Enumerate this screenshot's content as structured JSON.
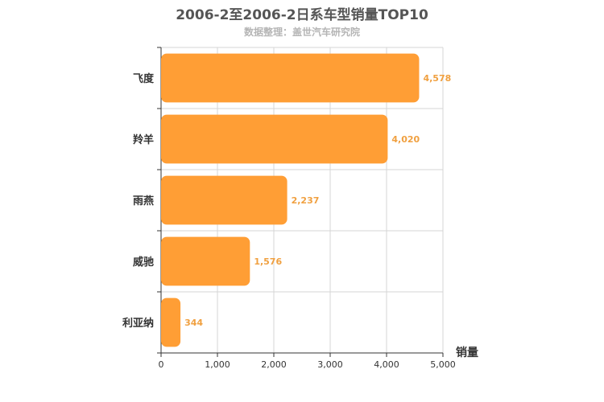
{
  "chart_data": {
    "type": "bar",
    "orientation": "horizontal",
    "title": "2006-2至2006-2日系车型销量TOP10",
    "subtitle": "数据整理：盖世汽车研究院",
    "categories": [
      "飞度",
      "羚羊",
      "雨燕",
      "威驰",
      "利亚纳"
    ],
    "values": [
      4578,
      4020,
      2237,
      1576,
      344
    ],
    "value_labels": [
      "4,578",
      "4,020",
      "2,237",
      "1,576",
      "344"
    ],
    "xlabel": "销量",
    "ylabel": "",
    "xlim": [
      0,
      5000
    ],
    "xticks": [
      0,
      1000,
      2000,
      3000,
      4000,
      5000
    ],
    "xtick_labels": [
      "0",
      "1,000",
      "2,000",
      "3,000",
      "4,000",
      "5,000"
    ],
    "grid": true,
    "bar_color": "#ff9e35",
    "label_color": "#f0a040"
  }
}
